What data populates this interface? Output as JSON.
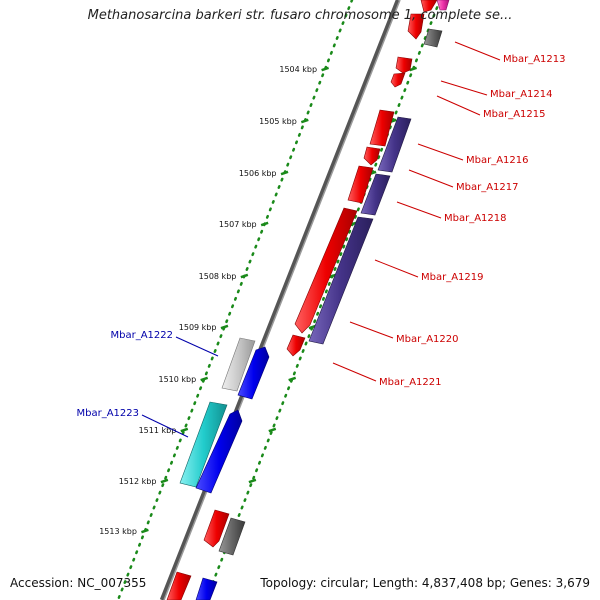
{
  "title": "Methanosarcina barkeri str. fusaro chromosome 1, complete se...",
  "footer": {
    "accession": "Accession: NC_007355",
    "topology": "Topology: circular; Length: 4,837,408 bp; Genes: 3,679"
  },
  "colors": {
    "backbone": "#808080",
    "ticks": "#1a8a1a",
    "label_right": "#cc0000",
    "label_left": "#0000aa"
  },
  "kbp_ticks": [
    {
      "label": "1504 kbp"
    },
    {
      "label": "1505 kbp"
    },
    {
      "label": "1506 kbp"
    },
    {
      "label": "1507 kbp"
    },
    {
      "label": "1508 kbp"
    },
    {
      "label": "1509 kbp"
    },
    {
      "label": "1510 kbp"
    },
    {
      "label": "1511 kbp"
    },
    {
      "label": "1512 kbp"
    },
    {
      "label": "1513 kbp"
    }
  ],
  "gene_labels_right": [
    "Mbar_A1213",
    "Mbar_A1214",
    "Mbar_A1215",
    "Mbar_A1216",
    "Mbar_A1217",
    "Mbar_A1218",
    "Mbar_A1219",
    "Mbar_A1220",
    "Mbar_A1221"
  ],
  "gene_labels_left": [
    "Mbar_A1222",
    "Mbar_A1223"
  ],
  "gene_colors": {
    "red": "#ee0000",
    "magenta": "#ee33aa",
    "dark_gray": "#666666",
    "light_gray": "#c8c8c8",
    "purple": "#443388",
    "blue": "#0000ee",
    "cyan": "#22cccc"
  }
}
